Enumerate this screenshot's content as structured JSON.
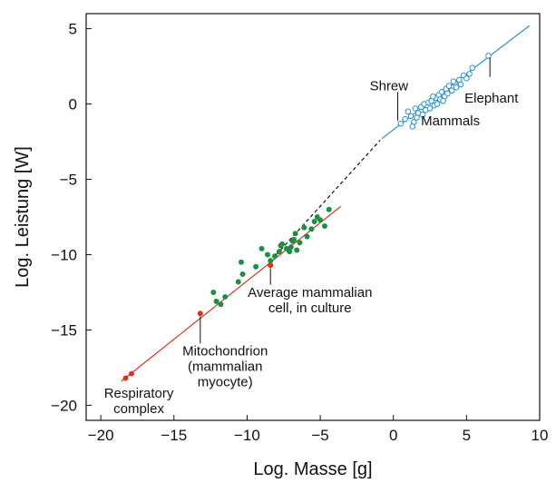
{
  "chart_data": {
    "type": "scatter",
    "title": "",
    "xlabel": "Log. Masse [g]",
    "ylabel": "Log. Leistung [W]",
    "xlim": [
      -21,
      10
    ],
    "ylim": [
      -21,
      6
    ],
    "xticks": [
      -20,
      -15,
      -10,
      -5,
      0,
      5,
      10
    ],
    "xtick_labels": [
      "−20",
      "−15",
      "−10",
      "−5",
      "0",
      "5",
      "10"
    ],
    "yticks": [
      5,
      0,
      -5,
      -10,
      -15,
      -20
    ],
    "ytick_labels": [
      "5",
      "0",
      "−5",
      "−10",
      "−15",
      "−20"
    ],
    "grid": false,
    "legend": "none",
    "colors": {
      "subcellular": "#e03020",
      "cells": "#1a9040",
      "mammals": "#2a8fd0",
      "axis": "#111111"
    },
    "fit_lines": [
      {
        "name": "",
        "style": "solid",
        "color": "#e03020",
        "x": [
          -18.6,
          -3.6
        ],
        "y": [
          -18.4,
          -6.8
        ]
      },
      {
        "name": "",
        "style": "dashed",
        "color": "#111111",
        "x": [
          -8.0,
          -0.9
        ],
        "y": [
          -10.0,
          -2.4
        ]
      },
      {
        "name": "",
        "style": "solid",
        "color": "#2a8fd0",
        "x": [
          -0.8,
          9.3
        ],
        "y": [
          -2.3,
          5.2
        ]
      }
    ],
    "series": [
      {
        "key": "subcellular",
        "marker": "filled",
        "x": [
          -18.3,
          -17.9,
          -13.2,
          -8.4
        ],
        "y": [
          -18.2,
          -17.9,
          -13.9,
          -10.7
        ]
      },
      {
        "key": "cells",
        "marker": "filled",
        "x": [
          -12.3,
          -12.1,
          -11.8,
          -11.5,
          -10.6,
          -10.3,
          -10.4,
          -9.4,
          -9.0,
          -8.6,
          -8.4,
          -8.1,
          -7.8,
          -7.7,
          -7.6,
          -7.3,
          -7.1,
          -7.0,
          -6.9,
          -6.8,
          -6.6,
          -6.7,
          -6.4,
          -6.1,
          -5.9,
          -5.6,
          -5.4,
          -5.2,
          -5.0,
          -4.7,
          -4.4
        ],
        "y": [
          -12.5,
          -13.1,
          -13.3,
          -12.8,
          -11.8,
          -11.3,
          -10.5,
          -10.8,
          -9.6,
          -10.0,
          -10.4,
          -10.1,
          -9.8,
          -9.4,
          -9.3,
          -9.6,
          -9.8,
          -9.5,
          -9.1,
          -9.0,
          -9.7,
          -8.6,
          -9.2,
          -8.2,
          -8.8,
          -8.3,
          -7.8,
          -7.5,
          -7.7,
          -8.1,
          -7.0
        ]
      },
      {
        "key": "mammals",
        "marker": "open",
        "x": [
          0.5,
          0.8,
          1.0,
          1.2,
          1.4,
          1.5,
          1.6,
          1.7,
          1.9,
          2.0,
          2.1,
          2.2,
          2.4,
          2.5,
          2.6,
          2.8,
          2.9,
          3.0,
          3.1,
          3.2,
          3.3,
          3.5,
          3.6,
          3.7,
          3.8,
          4.0,
          4.2,
          4.3,
          4.5,
          4.6,
          4.8,
          5.0,
          5.2,
          5.4,
          6.5,
          1.3,
          2.7,
          3.4,
          4.1
        ],
        "y": [
          -1.3,
          -1.0,
          -0.5,
          -0.8,
          -1.2,
          -0.3,
          -0.9,
          -0.6,
          -0.2,
          -0.7,
          0.0,
          -0.4,
          0.1,
          -0.3,
          0.2,
          -0.1,
          0.4,
          0.0,
          0.6,
          0.3,
          0.8,
          0.5,
          1.0,
          0.7,
          1.2,
          0.9,
          1.4,
          1.1,
          1.6,
          1.3,
          1.9,
          1.7,
          2.0,
          2.4,
          3.2,
          -1.5,
          0.5,
          0.2,
          1.5
        ]
      }
    ],
    "annotations": [
      {
        "id": "shrew",
        "lines": [
          "Shrew"
        ],
        "x": -0.3,
        "y": 0.9,
        "anchor": "middle",
        "leader": [
          [
            0.3,
            0.8
          ],
          [
            0.3,
            -1.1
          ]
        ]
      },
      {
        "id": "elephant",
        "lines": [
          "Elephant"
        ],
        "x": 6.7,
        "y": 0.1,
        "anchor": "middle",
        "leader": [
          [
            6.6,
            1.8
          ],
          [
            6.6,
            3.1
          ]
        ]
      },
      {
        "id": "mammals",
        "lines": [
          "Mammals"
        ],
        "x": 3.9,
        "y": -1.4,
        "anchor": "middle"
      },
      {
        "id": "avg-cell",
        "lines": [
          "Average mammalian",
          "cell, in culture"
        ],
        "x": -5.7,
        "y": -12.8,
        "anchor": "middle",
        "leader": [
          [
            -8.4,
            -12.0
          ],
          [
            -8.4,
            -10.9
          ]
        ]
      },
      {
        "id": "mitochondrion",
        "lines": [
          "Mitochondrion",
          "(mammalian",
          "myocyte)"
        ],
        "x": -11.5,
        "y": -16.7,
        "anchor": "middle",
        "leader": [
          [
            -13.2,
            -15.9
          ],
          [
            -13.2,
            -14.1
          ]
        ]
      },
      {
        "id": "respiratory",
        "lines": [
          "Respiratory",
          "complex"
        ],
        "x": -17.4,
        "y": -19.5,
        "anchor": "middle"
      }
    ]
  }
}
